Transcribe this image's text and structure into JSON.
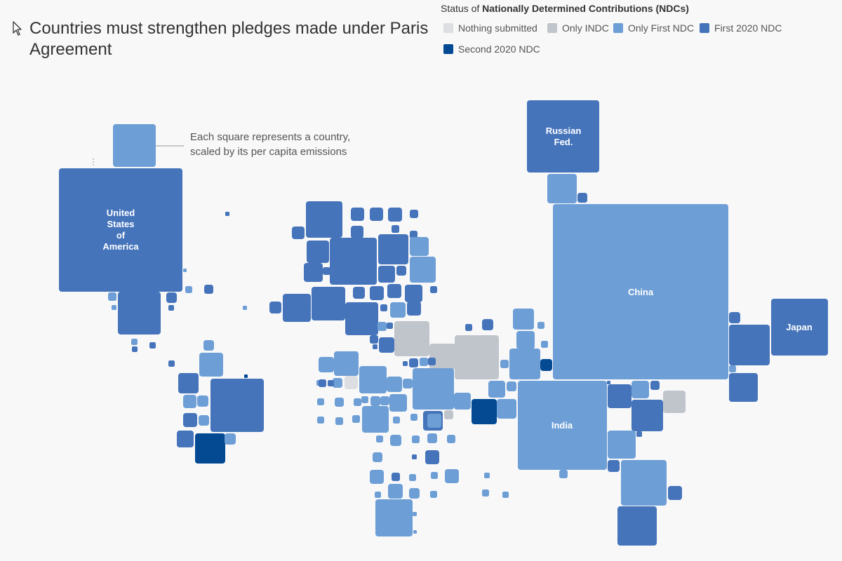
{
  "title": "Countries must strengthen pledges made under Paris Agreement",
  "legend": {
    "heading_prefix": "Status of ",
    "heading_bold": "Nationally Determined Contributions (NDCs)",
    "items": [
      {
        "label": "Nothing submitted",
        "color": "#dcdee2"
      },
      {
        "label": "Only INDC",
        "color": "#c0c5cc"
      },
      {
        "label": "Only First NDC",
        "color": "#6d9fd6"
      },
      {
        "label": "First 2020 NDC",
        "color": "#4574bb"
      },
      {
        "label": "Second 2020 NDC",
        "color": "#034a93"
      }
    ]
  },
  "annotation": {
    "line1": "Each square represents a country,",
    "line2": "scaled by its per capita emissions"
  },
  "country_labels": {
    "usa": [
      "United",
      "States",
      "of",
      "America"
    ],
    "russia": [
      "Russian",
      "Fed."
    ],
    "china": [
      "China"
    ],
    "japan": [
      "Japan"
    ],
    "india": [
      "India"
    ]
  }
}
